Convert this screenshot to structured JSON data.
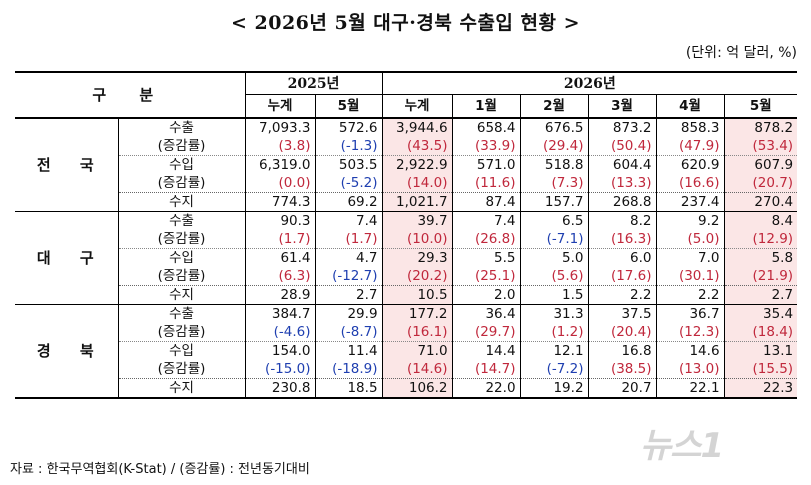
{
  "title": "< 2026년 5월 대구·경북 수출입 현황 >",
  "unit": "(단위: 억 달러, %)",
  "header": {
    "gubun": "구 분",
    "year_2025": "2025년",
    "year_2026": "2026년",
    "cols": [
      "누계",
      "5월",
      "누계",
      "1월",
      "2월",
      "3월",
      "4월",
      "5월"
    ]
  },
  "regions": [
    {
      "name": "전 국",
      "rows": [
        {
          "label": "수출",
          "values": [
            "7,093.3",
            "572.6",
            "3,944.6",
            "658.4",
            "676.5",
            "873.2",
            "858.3",
            "878.2"
          ]
        },
        {
          "label": "(증감률)",
          "values": [
            "(3.8)",
            "(-1.3)",
            "(43.5)",
            "(33.9)",
            "(29.4)",
            "(50.4)",
            "(47.9)",
            "(53.4)"
          ]
        },
        {
          "label": "수입",
          "values": [
            "6,319.0",
            "503.5",
            "2,922.9",
            "571.0",
            "518.8",
            "604.4",
            "620.9",
            "607.9"
          ]
        },
        {
          "label": "(증감률)",
          "values": [
            "(0.0)",
            "(-5.2)",
            "(14.0)",
            "(11.6)",
            "(7.3)",
            "(13.3)",
            "(16.6)",
            "(20.7)"
          ]
        },
        {
          "label": "수지",
          "values": [
            "774.3",
            "69.2",
            "1,021.7",
            "87.4",
            "157.7",
            "268.8",
            "237.4",
            "270.4"
          ]
        }
      ]
    },
    {
      "name": "대 구",
      "rows": [
        {
          "label": "수출",
          "values": [
            "90.3",
            "7.4",
            "39.7",
            "7.4",
            "6.5",
            "8.2",
            "9.2",
            "8.4"
          ]
        },
        {
          "label": "(증감률)",
          "values": [
            "(1.7)",
            "(1.7)",
            "(10.0)",
            "(26.8)",
            "(-7.1)",
            "(16.3)",
            "(5.0)",
            "(12.9)"
          ]
        },
        {
          "label": "수입",
          "values": [
            "61.4",
            "4.7",
            "29.3",
            "5.5",
            "5.0",
            "6.0",
            "7.0",
            "5.8"
          ]
        },
        {
          "label": "(증감률)",
          "values": [
            "(6.3)",
            "(-12.7)",
            "(20.2)",
            "(25.1)",
            "(5.6)",
            "(17.6)",
            "(30.1)",
            "(21.9)"
          ]
        },
        {
          "label": "수지",
          "values": [
            "28.9",
            "2.7",
            "10.5",
            "2.0",
            "1.5",
            "2.2",
            "2.2",
            "2.7"
          ]
        }
      ]
    },
    {
      "name": "경 북",
      "rows": [
        {
          "label": "수출",
          "values": [
            "384.7",
            "29.9",
            "177.2",
            "36.4",
            "31.3",
            "37.5",
            "36.7",
            "35.4"
          ]
        },
        {
          "label": "(증감률)",
          "values": [
            "(-4.6)",
            "(-8.7)",
            "(16.1)",
            "(29.7)",
            "(1.2)",
            "(20.4)",
            "(12.3)",
            "(18.4)"
          ]
        },
        {
          "label": "수입",
          "values": [
            "154.0",
            "11.4",
            "71.0",
            "14.4",
            "12.1",
            "16.8",
            "14.6",
            "13.1"
          ]
        },
        {
          "label": "(증감률)",
          "values": [
            "(-15.0)",
            "(-18.9)",
            "(14.6)",
            "(14.7)",
            "(-7.2)",
            "(38.5)",
            "(13.0)",
            "(15.5)"
          ]
        },
        {
          "label": "수지",
          "values": [
            "230.8",
            "18.5",
            "106.2",
            "22.0",
            "19.2",
            "20.7",
            "22.1",
            "22.3"
          ]
        }
      ]
    }
  ],
  "footnote": "자료 : 한국무역협회(K-Stat) / (증감률) : 전년동기대비",
  "watermark": "뉴스1"
}
